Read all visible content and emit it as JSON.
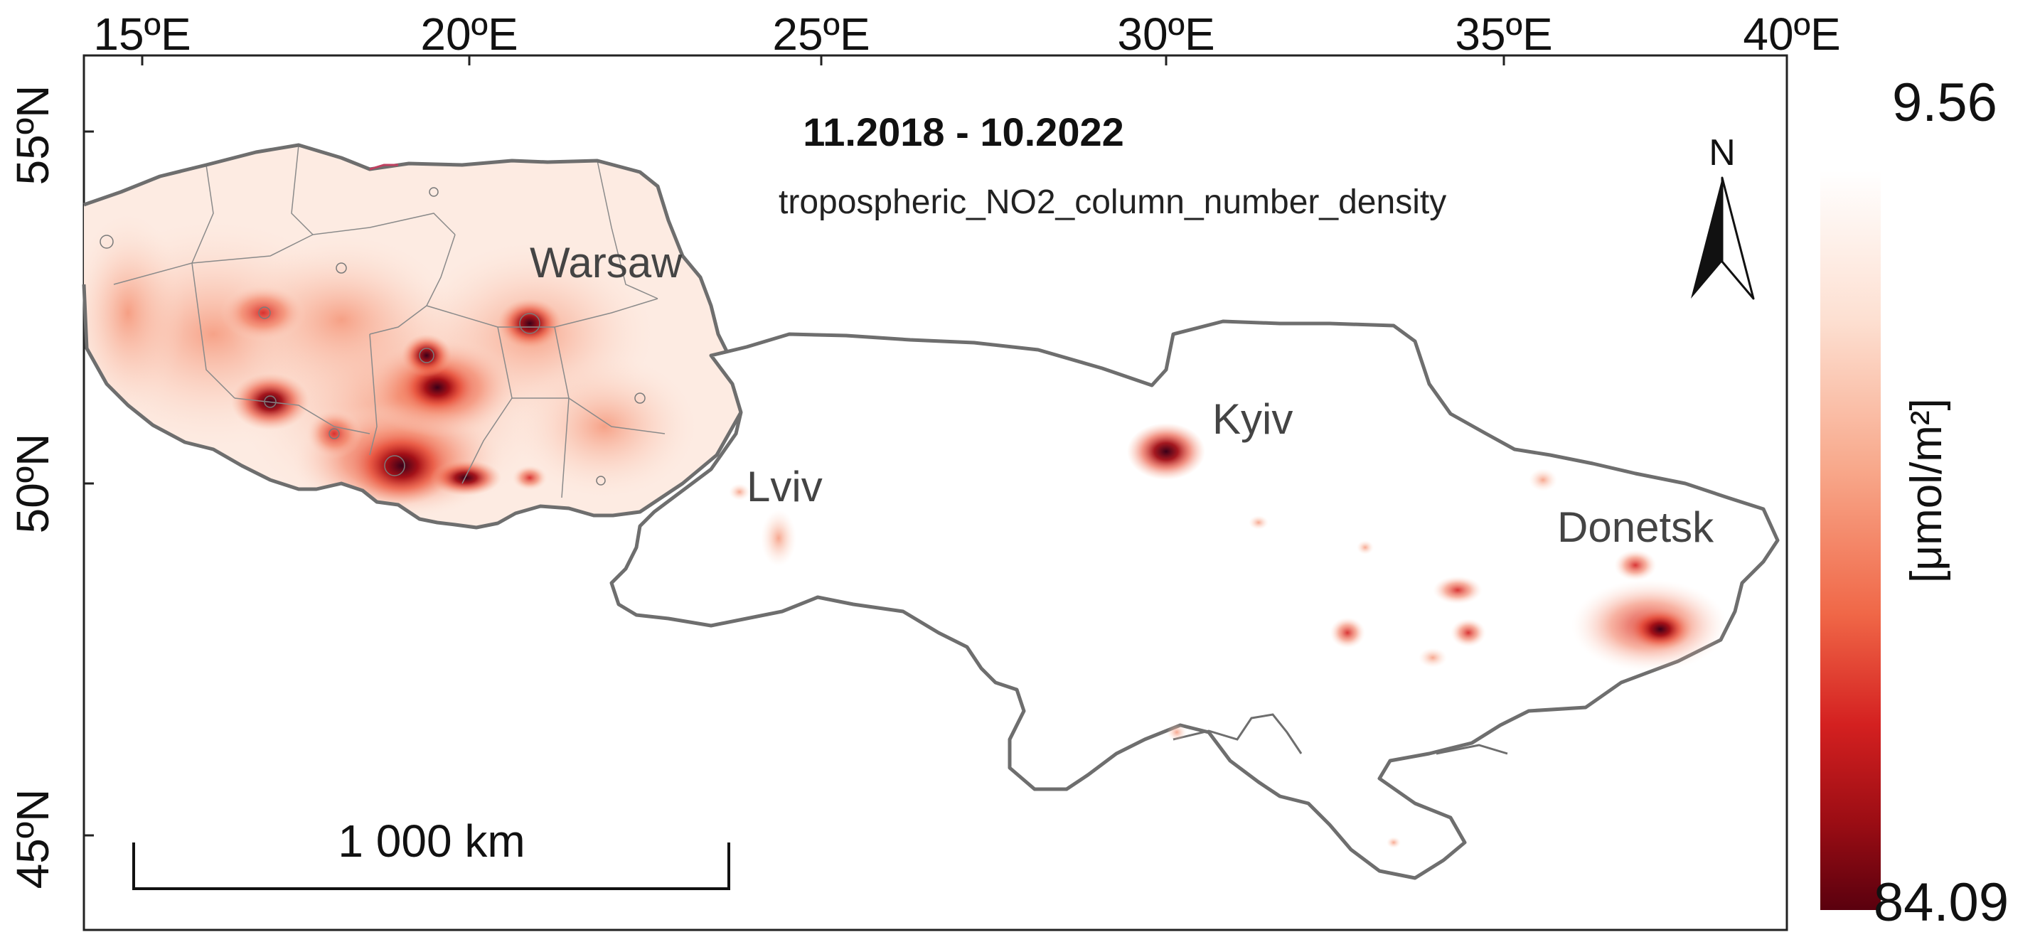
{
  "map": {
    "title": "11.2018 - 10.2022",
    "variable": "tropospheric_NO2_column_number_density",
    "graticule": {
      "longitudes": [
        "15ºE",
        "20ºE",
        "25ºE",
        "30ºE",
        "35ºE",
        "40ºE"
      ],
      "latitudes": [
        "55ºN",
        "50ºN",
        "45ºN"
      ]
    },
    "cities": [
      {
        "name": "Warsaw"
      },
      {
        "name": "Kyiv"
      },
      {
        "name": "Lviv"
      },
      {
        "name": "Donetsk"
      }
    ],
    "north_arrow": {
      "label": "N"
    },
    "scale_bar": {
      "label": "1 000 km"
    },
    "legend": {
      "max_label": "9.56",
      "min_label": "84.09",
      "unit": "[μmol/m²]",
      "colors": [
        "#ffffff",
        "#fde0d2",
        "#f8a98c",
        "#f06747",
        "#d42020",
        "#9c0d14",
        "#5a000e"
      ]
    },
    "colors": {
      "border": "#6e6e6e",
      "frame": "#222222",
      "hotspot_high": "#3a0018"
    }
  }
}
